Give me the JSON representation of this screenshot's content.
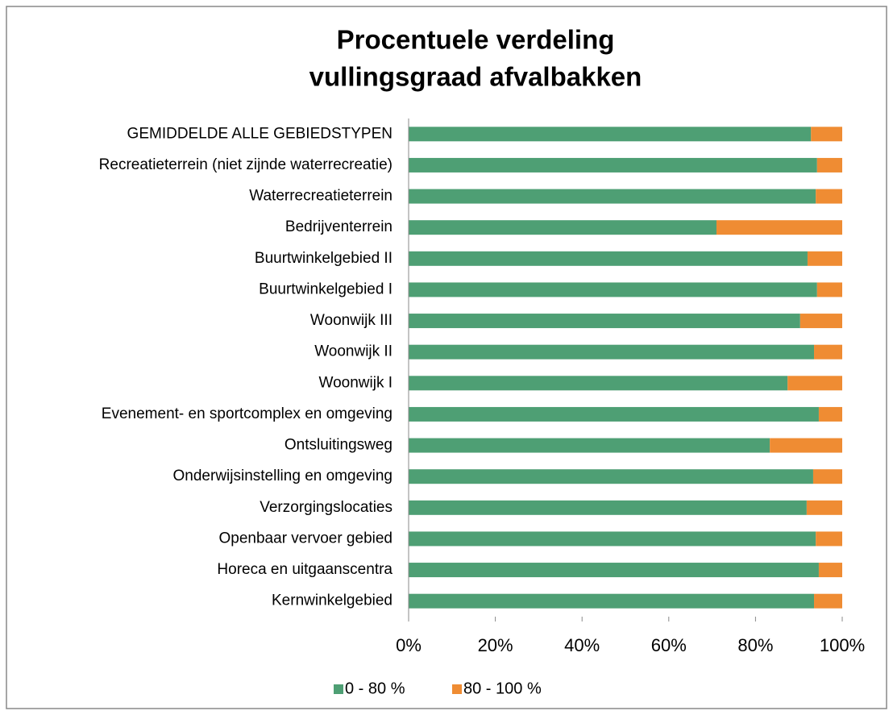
{
  "chart_data": {
    "type": "stacked_bar_horizontal",
    "title": [
      "Procentuele verdeling",
      "vullingsgraad afvalbakken"
    ],
    "categories": [
      "GEMIDDELDE ALLE GEBIEDSTYPEN",
      "Recreatieterrein (niet zijnde waterrecreatie)",
      "Waterrecreatieterrein",
      "Bedrijventerrein",
      "Buurtwinkelgebied II",
      "Buurtwinkelgebied I",
      "Woonwijk III",
      "Woonwijk II",
      "Woonwijk I",
      "Evenement- en sportcomplex en omgeving",
      "Ontsluitingsweg",
      "Onderwijsinstelling en omgeving",
      "Verzorgingslocaties",
      "Openbaar vervoer gebied",
      "Horeca en uitgaanscentra",
      "Kernwinkelgebied"
    ],
    "series": [
      {
        "name": "0 - 80 %",
        "color": "#4e9f74",
        "values": [
          92.8,
          94.2,
          93.9,
          71.0,
          92.0,
          94.2,
          90.3,
          93.5,
          87.4,
          94.6,
          83.3,
          93.3,
          91.8,
          93.9,
          94.6,
          93.5
        ]
      },
      {
        "name": "80 - 100 %",
        "color": "#ef8c33",
        "values": [
          7.2,
          5.8,
          6.1,
          29.0,
          8.0,
          5.8,
          9.7,
          6.5,
          12.6,
          5.4,
          16.7,
          6.7,
          8.2,
          6.1,
          5.4,
          6.5
        ]
      }
    ],
    "xlim": [
      0,
      100
    ],
    "xticks": [
      {
        "value": 0,
        "label": "0%"
      },
      {
        "value": 20,
        "label": "20%"
      },
      {
        "value": 40,
        "label": "40%"
      },
      {
        "value": 60,
        "label": "60%"
      },
      {
        "value": 80,
        "label": "80%"
      },
      {
        "value": 100,
        "label": "100%"
      }
    ],
    "legend": "bottom"
  }
}
